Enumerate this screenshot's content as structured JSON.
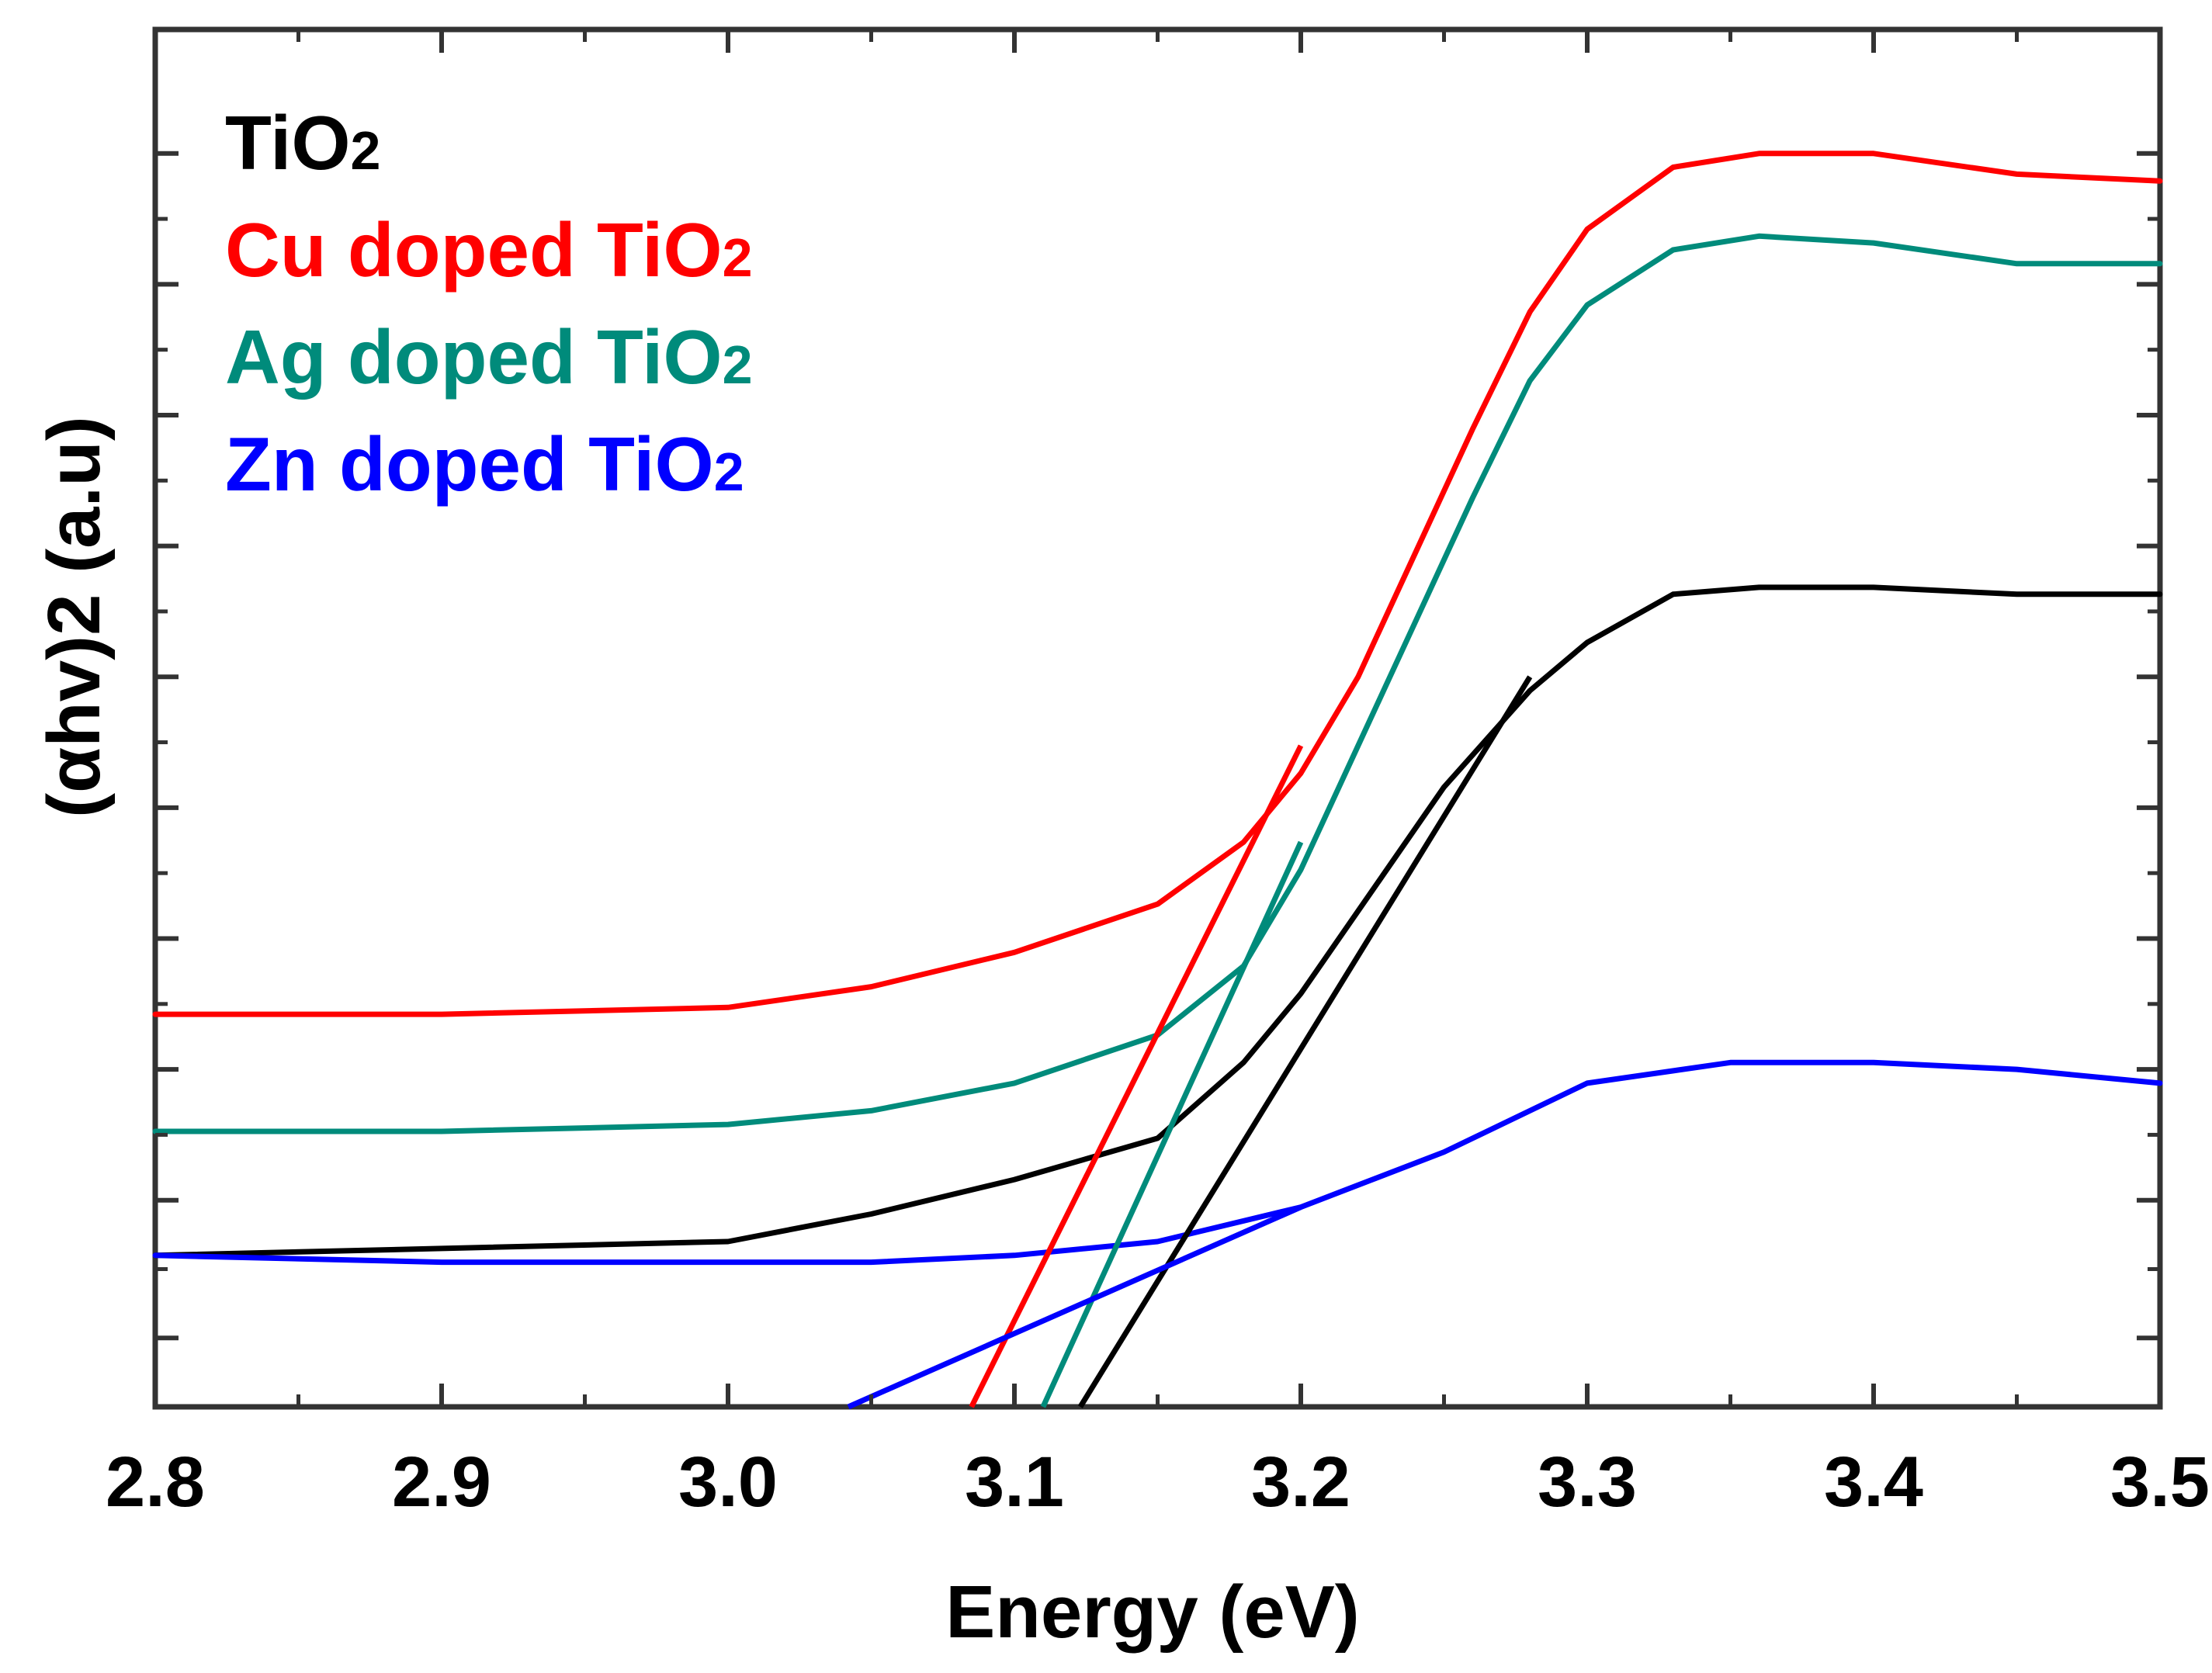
{
  "chart_data": {
    "type": "line",
    "title": "",
    "xlabel": "Energy (eV)",
    "ylabel": "(αhv)2 (a.u)",
    "xlim": [
      2.8,
      3.5
    ],
    "ylim": [
      0,
      100
    ],
    "xticks": [
      2.8,
      2.9,
      3.0,
      3.1,
      3.2,
      3.3,
      3.4,
      3.5
    ],
    "xtick_labels": [
      "2.8",
      "2.9",
      "3.0",
      "3.1",
      "3.2",
      "3.3",
      "3.4",
      "3.5"
    ],
    "yticks": [
      5,
      15,
      24.5,
      34,
      43.5,
      53,
      62.5,
      72,
      81.5,
      91
    ],
    "y_tick_labels_shown": false,
    "legend_position": "top-left",
    "series": [
      {
        "name": "TiO2",
        "label_main": "TiO",
        "label_sub": "2",
        "color": "#000000",
        "x": [
          2.8,
          2.9,
          3.0,
          3.05,
          3.1,
          3.15,
          3.18,
          3.2,
          3.22,
          3.25,
          3.28,
          3.3,
          3.33,
          3.36,
          3.4,
          3.45,
          3.5
        ],
        "y": [
          11,
          11.5,
          12,
          14,
          16.5,
          19.5,
          25,
          30,
          36,
          45,
          52,
          55.5,
          59,
          59.5,
          59.5,
          59,
          59
        ]
      },
      {
        "name": "Cu doped TiO2",
        "label_main": "Cu doped TiO",
        "label_sub": "2",
        "color": "#ff0000",
        "x": [
          2.8,
          2.9,
          3.0,
          3.05,
          3.1,
          3.15,
          3.18,
          3.2,
          3.22,
          3.24,
          3.26,
          3.28,
          3.3,
          3.33,
          3.36,
          3.4,
          3.45,
          3.5
        ],
        "y": [
          28.5,
          28.5,
          29,
          30.5,
          33,
          36.5,
          41,
          46,
          53,
          62,
          71,
          79.5,
          85.5,
          90,
          91,
          91,
          89.5,
          89
        ]
      },
      {
        "name": "Ag doped TiO2",
        "label_main": "Ag doped TiO",
        "label_sub": "2",
        "color": "#008b7b",
        "x": [
          2.8,
          2.9,
          3.0,
          3.05,
          3.1,
          3.15,
          3.18,
          3.2,
          3.22,
          3.24,
          3.26,
          3.28,
          3.3,
          3.33,
          3.36,
          3.4,
          3.45,
          3.5
        ],
        "y": [
          20,
          20,
          20.5,
          21.5,
          23.5,
          27,
          32,
          39,
          48,
          57,
          66,
          74.5,
          80,
          84,
          85,
          84.5,
          83,
          83
        ]
      },
      {
        "name": "Zn doped TiO2",
        "label_main": "Zn doped TiO",
        "label_sub": "2",
        "color": "#0000ff",
        "x": [
          2.8,
          2.9,
          3.0,
          3.05,
          3.1,
          3.15,
          3.2,
          3.25,
          3.3,
          3.35,
          3.4,
          3.45,
          3.5
        ],
        "y": [
          11,
          10.5,
          10.5,
          10.5,
          11,
          12,
          14.5,
          18.5,
          23.5,
          25,
          25,
          24.5,
          23.5
        ]
      }
    ],
    "fit_lines": [
      {
        "name": "TiO2 fit",
        "color": "#000000",
        "x": [
          3.123,
          3.28
        ],
        "y": [
          0,
          53
        ]
      },
      {
        "name": "Cu doped TiO2 fit",
        "color": "#ff0000",
        "x": [
          3.085,
          3.2
        ],
        "y": [
          0,
          48
        ]
      },
      {
        "name": "Ag doped TiO2 fit",
        "color": "#008b7b",
        "x": [
          3.11,
          3.2
        ],
        "y": [
          0,
          41
        ]
      },
      {
        "name": "Zn doped TiO2 fit",
        "color": "#0000ff",
        "x": [
          3.042,
          3.2
        ],
        "y": [
          0,
          14.5
        ]
      }
    ]
  }
}
